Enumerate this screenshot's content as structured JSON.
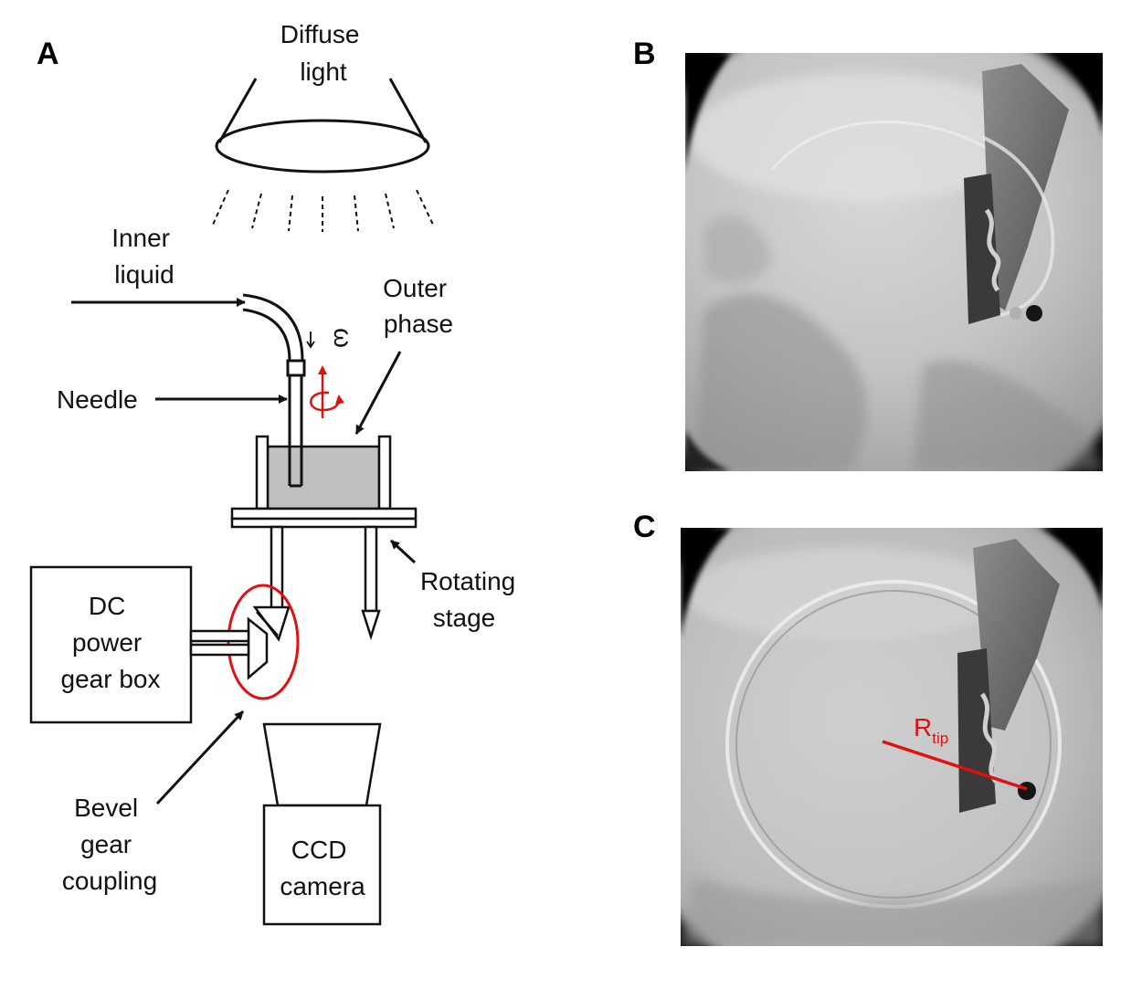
{
  "panels": {
    "a": {
      "letter": "A"
    },
    "b": {
      "letter": "B"
    },
    "c": {
      "letter": "C"
    }
  },
  "labels": {
    "diffuse_light": [
      "Diffuse",
      "light"
    ],
    "inner_liquid": [
      "Inner",
      "liquid"
    ],
    "outer_phase": [
      "Outer",
      "phase"
    ],
    "needle": "Needle",
    "omega": "ω",
    "rotating_stage": [
      "Rotating",
      "stage"
    ],
    "dc_box": [
      "DC",
      "power",
      "gear box"
    ],
    "bevel": [
      "Bevel",
      "gear",
      "coupling"
    ],
    "ccd": [
      "CCD",
      "camera"
    ],
    "r_tip": {
      "main": "R",
      "sub": "tip"
    }
  },
  "colors": {
    "accent_red": "#e01010",
    "liquid_fill": "#c0c0c0",
    "line": "#111111"
  }
}
